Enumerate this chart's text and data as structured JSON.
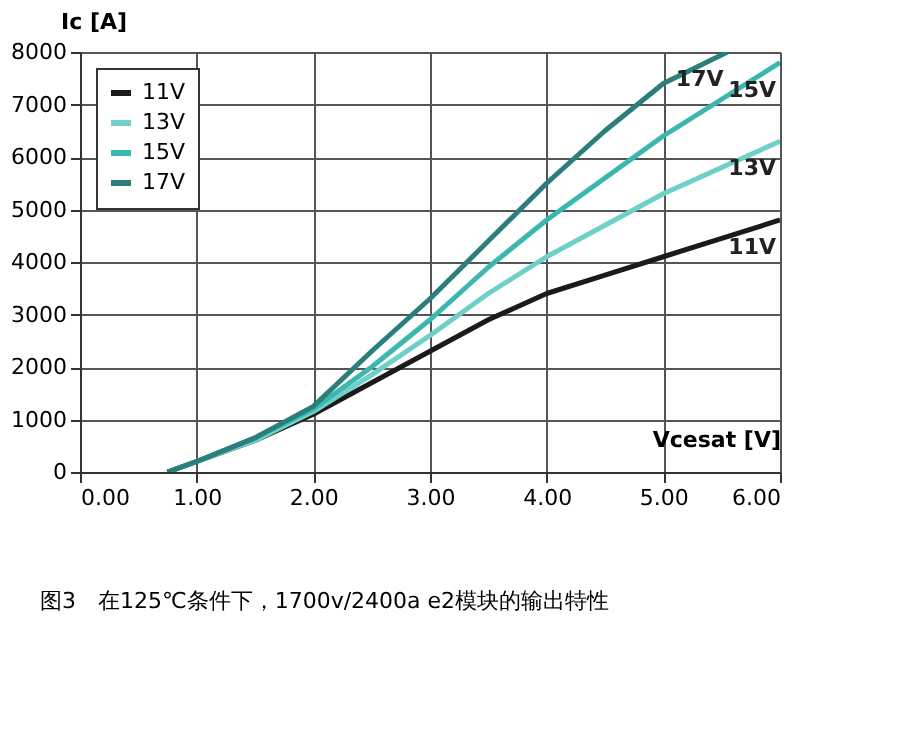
{
  "chart_data": {
    "type": "line",
    "xlabel": "Vcesat [V]",
    "ylabel": "Ic [A]",
    "xlim": [
      0,
      6
    ],
    "ylim": [
      0,
      8000
    ],
    "xticks": [
      {
        "value": 0,
        "label": "0.00"
      },
      {
        "value": 1,
        "label": "1.00"
      },
      {
        "value": 2,
        "label": "2.00"
      },
      {
        "value": 3,
        "label": "3.00"
      },
      {
        "value": 4,
        "label": "4.00"
      },
      {
        "value": 5,
        "label": "5.00"
      },
      {
        "value": 6,
        "label": "6.00"
      }
    ],
    "yticks": [
      0,
      1000,
      2000,
      3000,
      4000,
      5000,
      6000,
      7000,
      8000
    ],
    "grid": true,
    "legend": "top left",
    "marker": "none",
    "line_style": "solid",
    "series": [
      {
        "name": "11V",
        "color": "#1a1a1a",
        "x": [
          0.75,
          1,
          1.5,
          2,
          2.5,
          3,
          3.5,
          4,
          4.5,
          5,
          5.5,
          6
        ],
        "values": [
          0,
          200,
          600,
          1100,
          1700,
          2300,
          2900,
          3400,
          3750,
          4100,
          4450,
          4800
        ]
      },
      {
        "name": "13V",
        "color": "#6fd0c8",
        "x": [
          0.75,
          1,
          1.5,
          2,
          2.5,
          3,
          3.5,
          4,
          4.5,
          5,
          5.5,
          6
        ],
        "values": [
          0,
          200,
          600,
          1150,
          1850,
          2600,
          3400,
          4100,
          4700,
          5300,
          5800,
          6300
        ]
      },
      {
        "name": "15V",
        "color": "#3cb7b0",
        "x": [
          0.75,
          1,
          1.5,
          2,
          2.5,
          3,
          3.5,
          4,
          4.5,
          5,
          5.5,
          6
        ],
        "values": [
          0,
          200,
          650,
          1200,
          2000,
          2900,
          3900,
          4800,
          5600,
          6400,
          7100,
          7800
        ]
      },
      {
        "name": "17V",
        "color": "#2a7f7a",
        "x": [
          0.75,
          1,
          1.5,
          2,
          2.5,
          3,
          3.5,
          4,
          4.5,
          5,
          5.55
        ],
        "values": [
          0,
          200,
          650,
          1250,
          2300,
          3300,
          4400,
          5500,
          6500,
          7400,
          8000
        ]
      }
    ],
    "annotations": [
      "图3　在125℃条件下，1700v/2400a e2模块的输出特性"
    ]
  }
}
